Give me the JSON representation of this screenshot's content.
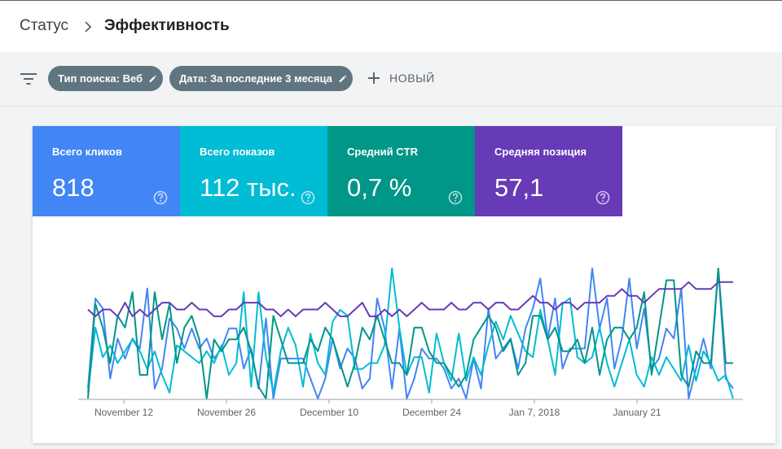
{
  "breadcrumb": {
    "root": "Статус",
    "current": "Эффективность"
  },
  "filters": {
    "chips": [
      {
        "label": "Тип поиска: Веб"
      },
      {
        "label": "Дата: За последние 3 месяца"
      }
    ],
    "add_label": "НОВЫЙ"
  },
  "metrics": [
    {
      "label": "Всего кликов",
      "value": "818",
      "color": "#4285f4"
    },
    {
      "label": "Всего показов",
      "value": "112 тыс.",
      "color": "#00bcd4"
    },
    {
      "label": "Средний CTR",
      "value": "0,7 %",
      "color": "#009688"
    },
    {
      "label": "Средняя позиция",
      "value": "57,1",
      "color": "#673ab7"
    }
  ],
  "chart_data": {
    "type": "line",
    "xlabel": "",
    "ylabel": "",
    "grid": false,
    "tick_labels": [
      "November 12",
      "November 26",
      "December 10",
      "December 24",
      "Jan 7, 2018",
      "January 21"
    ],
    "series": [
      {
        "color": "#4285f4",
        "values": [
          1,
          10,
          9,
          2,
          6,
          4,
          6,
          5,
          11,
          1,
          3,
          8,
          7,
          5,
          7,
          5,
          6,
          4,
          5,
          7,
          7,
          3,
          5,
          1,
          8,
          0,
          4,
          4,
          4,
          4,
          2,
          0,
          2,
          6,
          3,
          5,
          4,
          1,
          2,
          10,
          7,
          1,
          7,
          0,
          2,
          5,
          4,
          4,
          3,
          1,
          2,
          0,
          4,
          1,
          9,
          4,
          5,
          6,
          3,
          7,
          9,
          12,
          6,
          10,
          3,
          5,
          5,
          5,
          13,
          7,
          10,
          3,
          6,
          12,
          5,
          9,
          3,
          4,
          7,
          6,
          11,
          0,
          3,
          6,
          3,
          13,
          2,
          1
        ]
      },
      {
        "color": "#00bcd4",
        "values": [
          1,
          12,
          7,
          9,
          6,
          8,
          10,
          8,
          5,
          8,
          4,
          1,
          9,
          8,
          7,
          6,
          8,
          6,
          9,
          4,
          6,
          18,
          2,
          18,
          7,
          1,
          8,
          12,
          9,
          2,
          11,
          6,
          4,
          13,
          15,
          14,
          5,
          5,
          6,
          6,
          9,
          22,
          12,
          4,
          7,
          7,
          1,
          11,
          6,
          3,
          11,
          3,
          7,
          4,
          9,
          13,
          10,
          14,
          11,
          8,
          7,
          15,
          10,
          4,
          16,
          17,
          7,
          6,
          7,
          12,
          6,
          2,
          6,
          10,
          4,
          2,
          7,
          4,
          7,
          5,
          3,
          9,
          3,
          8,
          6,
          3,
          4,
          0
        ]
      },
      {
        "color": "#009688",
        "values": [
          0,
          8,
          6,
          3,
          7,
          6,
          9,
          2,
          2,
          9,
          5,
          8,
          3,
          6,
          7,
          5,
          0,
          5,
          4,
          5,
          5,
          6,
          4,
          1,
          0,
          7,
          5,
          3,
          3,
          3,
          5,
          4,
          6,
          5,
          3,
          1,
          3,
          6,
          5,
          7,
          5,
          3,
          3,
          2,
          6,
          6,
          4,
          3,
          3,
          2,
          1,
          2,
          5,
          6,
          7,
          6,
          4,
          5,
          2,
          3,
          7,
          7,
          5,
          6,
          4,
          4,
          5,
          3,
          6,
          2,
          5,
          6,
          6,
          5,
          6,
          9,
          2,
          6,
          10,
          10,
          2,
          1,
          4,
          3,
          3,
          11,
          3,
          3
        ]
      },
      {
        "color": "#673ab7",
        "values": [
          57,
          56,
          57,
          57,
          56,
          58,
          56,
          57,
          56,
          57,
          58,
          58,
          57,
          57,
          58,
          57,
          57,
          56,
          56,
          57,
          57,
          58,
          58,
          58,
          57,
          57,
          56,
          57,
          56,
          57,
          57,
          57,
          58,
          57,
          56,
          56,
          57,
          58,
          56,
          56,
          57,
          56,
          57,
          56,
          57,
          58,
          57,
          57,
          57,
          58,
          57,
          57,
          58,
          58,
          57,
          58,
          58,
          57,
          57,
          58,
          59,
          58,
          58,
          57,
          58,
          58,
          57,
          58,
          58,
          58,
          59,
          59,
          60,
          59,
          59,
          58,
          59,
          60,
          60,
          60,
          60,
          61,
          60,
          60,
          60,
          61,
          61,
          61
        ]
      }
    ]
  },
  "colors": {
    "chip_bg": "#5f7580",
    "topbar_bg": "#ffffff"
  }
}
